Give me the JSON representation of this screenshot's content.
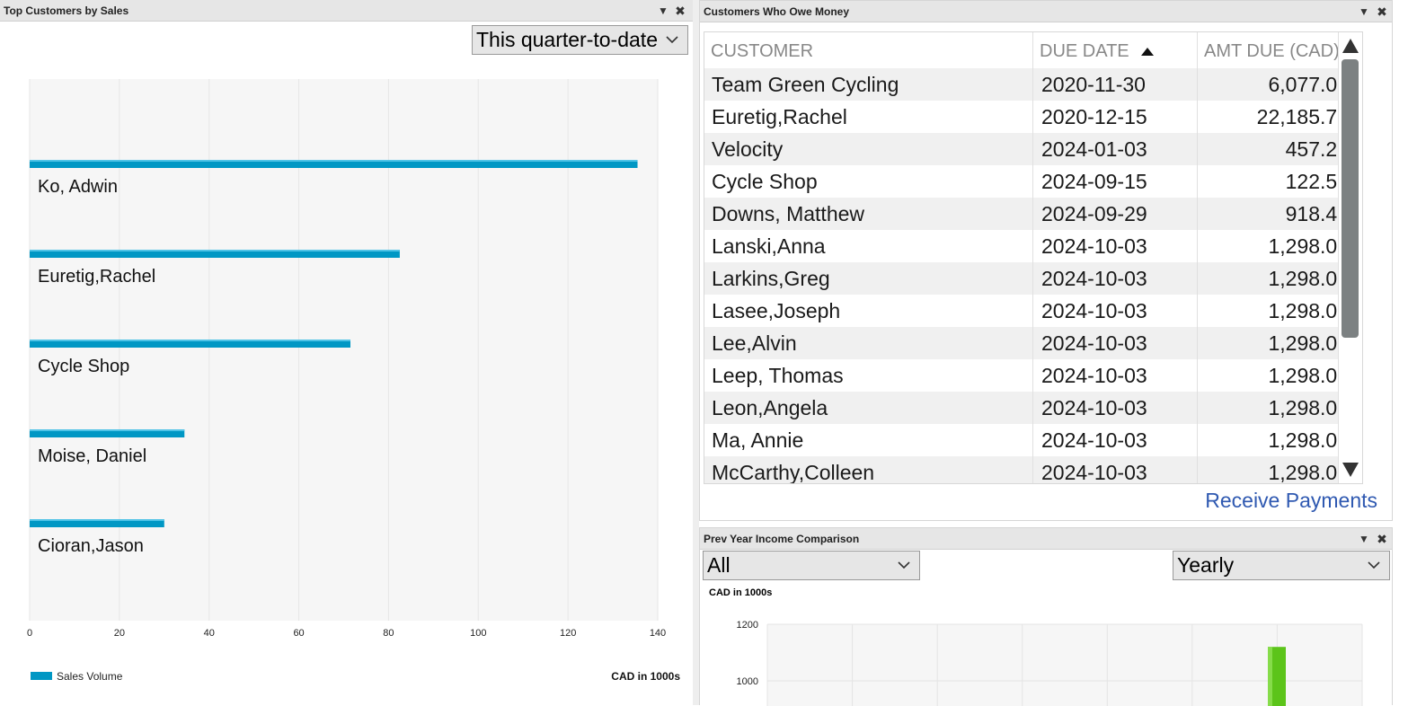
{
  "top_customers": {
    "title": "Top Customers by Sales",
    "period_select": "This quarter-to-date",
    "legend_label": "Sales Volume",
    "units_label": "CAD in 1000s",
    "accent_color": "#0097c4",
    "chart_data": {
      "type": "bar",
      "orientation": "horizontal",
      "categories": [
        "Ko, Adwin",
        "Euretig,Rachel",
        "Cycle Shop",
        "Moise, Daniel",
        "Cioran,Jason"
      ],
      "series": [
        {
          "name": "Sales Volume",
          "values": [
            135.5,
            82.5,
            71.5,
            34.5,
            30
          ]
        }
      ],
      "xticks": [
        "0",
        "20",
        "40",
        "60",
        "80",
        "100",
        "120",
        "140"
      ],
      "xlim": [
        0,
        140
      ],
      "grid": true,
      "legend": "bottom-left"
    }
  },
  "owe_money": {
    "title": "Customers Who Owe Money",
    "columns": [
      "CUSTOMER",
      "DUE DATE",
      "AMT DUE (CAD)"
    ],
    "sort_icon": "sort-ascending-icon",
    "rows": [
      {
        "customer": "Team Green Cycling",
        "due": "2020-11-30",
        "amt": "6,077.00"
      },
      {
        "customer": "Euretig,Rachel",
        "due": "2020-12-15",
        "amt": "22,185.75"
      },
      {
        "customer": "Velocity",
        "due": "2024-01-03",
        "amt": "457.25"
      },
      {
        "customer": "Cycle Shop",
        "due": "2024-09-15",
        "amt": "122.50"
      },
      {
        "customer": "Downs, Matthew",
        "due": "2024-09-29",
        "amt": "918.48"
      },
      {
        "customer": "Lanski,Anna",
        "due": "2024-10-03",
        "amt": "1,298.00"
      },
      {
        "customer": "Larkins,Greg",
        "due": "2024-10-03",
        "amt": "1,298.00"
      },
      {
        "customer": "Lasee,Joseph",
        "due": "2024-10-03",
        "amt": "1,298.00"
      },
      {
        "customer": "Lee,Alvin",
        "due": "2024-10-03",
        "amt": "1,298.00"
      },
      {
        "customer": "Leep, Thomas",
        "due": "2024-10-03",
        "amt": "1,298.00"
      },
      {
        "customer": "Leon,Angela",
        "due": "2024-10-03",
        "amt": "1,298.00"
      },
      {
        "customer": "Ma, Annie",
        "due": "2024-10-03",
        "amt": "1,298.00"
      },
      {
        "customer": "McCarthy,Colleen",
        "due": "2024-10-03",
        "amt": "1,298.00"
      }
    ],
    "receive_payments": "Receive Payments"
  },
  "income": {
    "title": "Prev Year Income Comparison",
    "filter_select": "All",
    "period_select": "Yearly",
    "units_label": "CAD in 1000s",
    "bar_color": "#5cc41a",
    "chart_data": {
      "type": "bar",
      "yticks": [
        "1200",
        "1000"
      ],
      "ylim_visible": [
        950,
        1200
      ],
      "bars": [
        {
          "value": 1120
        }
      ]
    }
  },
  "icons": {
    "minimize": "chevron-down-icon",
    "close": "close-icon"
  }
}
